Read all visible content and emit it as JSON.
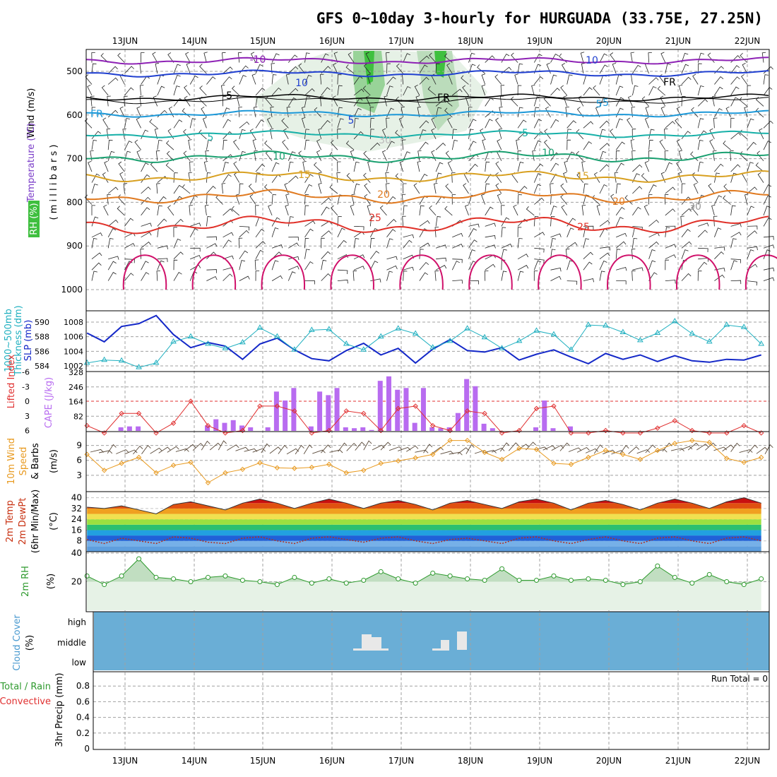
{
  "title": "GFS 0~10day 3-hourly for HURGUADA (33.75E, 27.25N)",
  "dates": [
    "13JUN",
    "14JUN",
    "15JUN",
    "16JUN",
    "17JUN",
    "18JUN",
    "19JUN",
    "20JUN",
    "21JUN",
    "22JUN"
  ],
  "colors": {
    "slp": "#1428c8",
    "thickness": "#20b0c0",
    "cape": "#b86cf0",
    "lifted": "#e03030",
    "wind10": "#e89a20",
    "barb": "#000000",
    "rh": "#2e9a2e",
    "rh_fill": "#a8d0a8",
    "cloud_bg": "#6aaed6",
    "cloud_block": "#e8e8e8",
    "grid": "#a0a0a0"
  },
  "panels": {
    "upper": {
      "axis_labels": {
        "wind": "Wind (m/s)",
        "temp": "Temperature (°C)",
        "rh": "RH (%)",
        "pressure": "( m i l l i b a r s )"
      },
      "pressure_ticks": [
        "500",
        "600",
        "700",
        "800",
        "900",
        "1000"
      ],
      "contour_labels": [
        "-10",
        "-5",
        "FR",
        "FR",
        "FR",
        "-5",
        "5",
        "5",
        "5",
        "-5",
        "10",
        "10",
        "15",
        "15",
        "20",
        "20",
        "25",
        "25",
        "30",
        "30",
        "10",
        "10"
      ]
    },
    "slp": {
      "axis_labels": {
        "thickness": "Thickness (dm)",
        "thickness_top": "1000~500mb",
        "slp": "SLP (mb)"
      },
      "left_ticks": [
        "584",
        "586",
        "588",
        "590"
      ],
      "right_ticks": [
        "1002",
        "1004",
        "1006",
        "1008"
      ]
    },
    "cape": {
      "axis_labels": {
        "lifted": "Lifted Index",
        "cape": "CAPE (J/kg)"
      },
      "lifted_ticks": [
        "-6",
        "-3",
        "0",
        "3",
        "6"
      ],
      "cape_ticks": [
        "328",
        "246",
        "164",
        "82"
      ]
    },
    "wind10": {
      "axis_labels": {
        "line1": "10m Wind",
        "line2": "Speed",
        "line3": "& Barbs",
        "unit": "(m/s)"
      },
      "ticks": [
        "3",
        "6",
        "9"
      ]
    },
    "temp2m": {
      "axis_labels": {
        "line1": "2m Temp",
        "line2": "2m DewPt",
        "line3": "(6hr Min/Max)",
        "unit": "(°C)"
      },
      "ticks": [
        "8",
        "16",
        "24",
        "32",
        "40"
      ]
    },
    "rh2m": {
      "axis_labels": {
        "title": "2m RH",
        "unit": "(%)"
      },
      "ticks": [
        "20",
        "40"
      ]
    },
    "cloud": {
      "axis_labels": {
        "title": "Cloud Cover",
        "unit": "(%)"
      },
      "levels": [
        "high",
        "middle",
        "low"
      ]
    },
    "precip": {
      "axis_labels": {
        "line1": "Total / Rain",
        "line2": "Convective",
        "y": "3hr Precip (mm)"
      },
      "ticks": [
        "0",
        "0.2",
        "0.4",
        "0.6",
        "0.8"
      ],
      "run_total": "Run Total = 0"
    }
  },
  "chart_data": {
    "type": "line",
    "time_step_hours": 3,
    "series": [
      {
        "name": "SLP (mb)",
        "units": "mb",
        "x_days": [
          0.0,
          0.25,
          0.5,
          0.75,
          1.0,
          1.25,
          1.5,
          1.75,
          2.0,
          2.25,
          2.5,
          2.75,
          3.0,
          3.25,
          3.5,
          3.75,
          4.0,
          4.25,
          4.5,
          4.75,
          5.0,
          5.25,
          5.5,
          5.75,
          6.0,
          6.25,
          6.5,
          6.75,
          7.0,
          7.25,
          7.5,
          7.75,
          8.0,
          8.25,
          8.5,
          8.75,
          9.0,
          9.25,
          9.5,
          9.75,
          10.0
        ],
        "values": [
          1006.5,
          1005.3,
          1007.4,
          1007.8,
          1008.9,
          1006.3,
          1004.5,
          1005.2,
          1004.7,
          1002.9,
          1005.0,
          1005.8,
          1004.2,
          1003.0,
          1002.7,
          1004.1,
          1005.1,
          1003.5,
          1004.4,
          1002.4,
          1004.3,
          1005.6,
          1004.1,
          1003.9,
          1004.5,
          1002.8,
          1003.6,
          1004.2,
          1003.2,
          1002.3,
          1003.7,
          1002.9,
          1003.5,
          1002.6,
          1003.4,
          1002.7,
          1002.5,
          1002.9,
          1002.8,
          1003.5,
          1003.7
        ]
      },
      {
        "name": "1000~500mb Thickness (dm)",
        "units": "dm",
        "x_days": [
          0.0,
          0.25,
          0.5,
          0.75,
          1.0,
          1.25,
          1.5,
          1.75,
          2.0,
          2.25,
          2.5,
          2.75,
          3.0,
          3.25,
          3.5,
          3.75,
          4.0,
          4.25,
          4.5,
          4.75,
          5.0,
          5.25,
          5.5,
          5.75,
          6.0,
          6.25,
          6.5,
          6.75,
          7.0,
          7.25,
          7.5,
          7.75,
          8.0,
          8.25,
          8.5,
          8.75,
          9.0,
          9.25,
          9.5,
          9.75,
          10.0
        ],
        "values": [
          584.4,
          584.8,
          584.7,
          583.8,
          584.4,
          587.3,
          588.0,
          587.0,
          586.4,
          587.2,
          589.2,
          588.0,
          586.2,
          588.9,
          589.0,
          587.0,
          586.2,
          588.0,
          589.1,
          588.4,
          586.5,
          587.4,
          589.1,
          587.9,
          586.4,
          587.4,
          588.8,
          588.3,
          586.2,
          589.6,
          589.5,
          588.6,
          587.5,
          588.5,
          590.1,
          588.4,
          587.3,
          589.6,
          589.3,
          587.0,
          585.6
        ]
      },
      {
        "name": "CAPE (J/kg)",
        "units": "J/kg",
        "x_days": [
          0.5,
          0.625,
          0.75,
          1.75,
          1.875,
          2.0,
          2.125,
          2.25,
          2.375,
          2.625,
          2.75,
          2.875,
          3.0,
          3.25,
          3.375,
          3.5,
          3.625,
          3.75,
          3.875,
          4.0,
          4.125,
          4.25,
          4.375,
          4.5,
          4.625,
          4.75,
          4.875,
          5.0,
          5.125,
          5.25,
          5.375,
          5.5,
          5.625,
          5.75,
          5.875,
          6.5,
          6.625,
          6.75,
          7.0
        ],
        "values": [
          20,
          25,
          25,
          30,
          65,
          45,
          60,
          30,
          20,
          20,
          220,
          170,
          240,
          25,
          220,
          200,
          240,
          20,
          15,
          20,
          5,
          280,
          305,
          230,
          240,
          45,
          240,
          20,
          15,
          20,
          100,
          290,
          250,
          40,
          15,
          20,
          170,
          15,
          25
        ]
      },
      {
        "name": "Lifted Index",
        "units": "index",
        "x_days": [
          0.0,
          0.25,
          0.5,
          0.75,
          1.0,
          1.25,
          1.5,
          1.75,
          2.0,
          2.25,
          2.5,
          2.75,
          3.0,
          3.25,
          3.5,
          3.75,
          4.0,
          4.25,
          4.5,
          4.75,
          5.0,
          5.25,
          5.5,
          5.75,
          6.0,
          6.25,
          6.5,
          6.75,
          7.0,
          7.25,
          7.5,
          7.75,
          8.0,
          8.25,
          8.5,
          8.75,
          9.0,
          9.25,
          9.5,
          9.75,
          10.0
        ],
        "values": [
          5.0,
          6.5,
          2.5,
          2.5,
          6.5,
          4.5,
          0.0,
          5.0,
          6.5,
          6.0,
          1.0,
          1.0,
          2.0,
          6.5,
          6.0,
          2.0,
          2.5,
          6.0,
          1.5,
          1.0,
          5.0,
          6.0,
          2.0,
          2.5,
          6.5,
          6.0,
          1.5,
          1.0,
          6.5,
          6.5,
          6.0,
          6.5,
          6.5,
          5.5,
          4.0,
          6.0,
          6.5,
          6.5,
          5.0,
          6.5,
          6.5
        ]
      },
      {
        "name": "10m Wind Speed (m/s)",
        "units": "m/s",
        "x_days": [
          0.0,
          0.25,
          0.5,
          0.75,
          1.0,
          1.25,
          1.5,
          1.75,
          2.0,
          2.25,
          2.5,
          2.75,
          3.0,
          3.25,
          3.5,
          3.75,
          4.0,
          4.25,
          4.5,
          4.75,
          5.0,
          5.25,
          5.5,
          5.75,
          6.0,
          6.25,
          6.5,
          6.75,
          7.0,
          7.25,
          7.5,
          7.75,
          8.0,
          8.25,
          8.5,
          8.75,
          9.0,
          9.25,
          9.5,
          9.75,
          10.0
        ],
        "values": [
          7.2,
          4.0,
          5.4,
          6.6,
          3.5,
          5.0,
          5.6,
          1.5,
          3.5,
          4.2,
          5.5,
          4.5,
          4.4,
          4.6,
          5.2,
          3.5,
          4.0,
          5.4,
          5.9,
          6.5,
          7.2,
          10.0,
          10.0,
          7.6,
          6.2,
          8.4,
          8.2,
          5.4,
          5.2,
          6.6,
          8.0,
          7.2,
          6.2,
          8.0,
          9.4,
          10.0,
          9.6,
          6.4,
          5.6,
          6.6,
          7.6
        ]
      },
      {
        "name": "2m Temp (°C)",
        "units": "°C",
        "x_days": [
          0.0,
          0.25,
          0.5,
          0.75,
          1.0,
          1.25,
          1.5,
          1.75,
          2.0,
          2.25,
          2.5,
          2.75,
          3.0,
          3.25,
          3.5,
          3.75,
          4.0,
          4.25,
          4.5,
          4.75,
          5.0,
          5.25,
          5.5,
          5.75,
          6.0,
          6.25,
          6.5,
          6.75,
          7.0,
          7.25,
          7.5,
          7.75,
          8.0,
          8.25,
          8.5,
          8.75,
          9.0,
          9.25,
          9.5,
          9.75,
          10.0
        ],
        "values": [
          33,
          32,
          34,
          31,
          28,
          35,
          37,
          34,
          31,
          36,
          39,
          36,
          32,
          36,
          39,
          36,
          32,
          36,
          38,
          35,
          31,
          36,
          38,
          35,
          32,
          37,
          39,
          36,
          31,
          36,
          38,
          35,
          31,
          36,
          39,
          36,
          32,
          37,
          40,
          36,
          32
        ]
      },
      {
        "name": "2m DewPt (°C)",
        "units": "°C",
        "x_days": [
          0.0,
          0.25,
          0.5,
          0.75,
          1.0,
          1.25,
          1.5,
          1.75,
          2.0,
          2.25,
          2.5,
          2.75,
          3.0,
          3.25,
          3.5,
          3.75,
          4.0,
          4.25,
          4.5,
          4.75,
          5.0,
          5.25,
          5.5,
          5.75,
          6.0,
          6.25,
          6.5,
          6.75,
          7.0,
          7.25,
          7.5,
          7.75,
          8.0,
          8.25,
          8.5,
          8.75,
          9.0,
          9.25,
          9.5,
          9.75,
          10.0
        ],
        "values": [
          9,
          6,
          10,
          8,
          6,
          11,
          10,
          7,
          6,
          10,
          11,
          8,
          6,
          10,
          11,
          9,
          7,
          10,
          11,
          8,
          6,
          9,
          10,
          8,
          6,
          10,
          11,
          8,
          6,
          9,
          11,
          8,
          6,
          10,
          11,
          8,
          6,
          10,
          11,
          8,
          7
        ]
      },
      {
        "name": "2m RH (%)",
        "units": "%",
        "x_days": [
          0.0,
          0.25,
          0.5,
          0.75,
          1.0,
          1.25,
          1.5,
          1.75,
          2.0,
          2.25,
          2.5,
          2.75,
          3.0,
          3.25,
          3.5,
          3.75,
          4.0,
          4.25,
          4.5,
          4.75,
          5.0,
          5.25,
          5.5,
          5.75,
          6.0,
          6.25,
          6.5,
          6.75,
          7.0,
          7.25,
          7.5,
          7.75,
          8.0,
          8.25,
          8.5,
          8.75,
          9.0,
          9.25,
          9.5,
          9.75,
          10.0
        ],
        "values": [
          24,
          18,
          24,
          36,
          23,
          22,
          20,
          23,
          24,
          21,
          20,
          18,
          23,
          19,
          22,
          19,
          21,
          27,
          22,
          19,
          26,
          24,
          22,
          21,
          29,
          21,
          21,
          24,
          21,
          22,
          21,
          18,
          20,
          31,
          23,
          19,
          25,
          20,
          18,
          22,
          34
        ]
      }
    ],
    "cloud_cover": {
      "levels": [
        "high",
        "middle",
        "low"
      ],
      "note": "middle-level cloud blocks around 16.5JUN, 17.5JUN and 17.8JUN"
    },
    "precip_3hr_mm": {
      "ylim": [
        0,
        1.0
      ],
      "values": [],
      "run_total_mm": 0
    },
    "x_range_days": [
      0,
      10
    ]
  }
}
